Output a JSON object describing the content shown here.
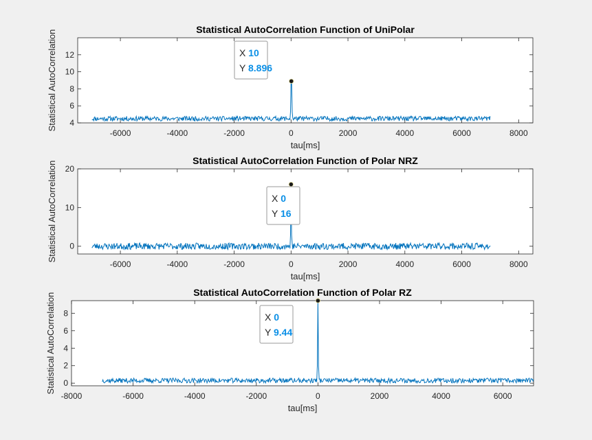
{
  "chart_data": [
    {
      "type": "line",
      "title": "Statistical AutoCorrelation Function of UniPolar",
      "xlabel": "tau[ms]",
      "ylabel": "Statistical AutoCorrelation",
      "xlim": [
        -7500,
        8500
      ],
      "ylim": [
        4,
        14
      ],
      "xticks": [
        -6000,
        -4000,
        -2000,
        0,
        2000,
        4000,
        6000,
        8000
      ],
      "yticks": [
        4,
        6,
        8,
        10,
        12
      ],
      "series_color": "#0072bd",
      "series": [
        {
          "x_range": [
            -7000,
            7000
          ],
          "baseline": 4.5,
          "noise": 0.28,
          "peak": {
            "x": 10,
            "y": 8.896
          },
          "seed": 11
        }
      ],
      "datatip": {
        "x_label": "X",
        "x_value": "10",
        "y_label": "Y",
        "y_value": "8.896",
        "x": 10,
        "y": 8.896
      }
    },
    {
      "type": "line",
      "title": "Statistical AutoCorrelation Function of Polar NRZ",
      "xlabel": "tau[ms]",
      "ylabel": "Statistical AutoCorrelation",
      "xlim": [
        -7500,
        8500
      ],
      "ylim": [
        -2,
        20
      ],
      "xticks": [
        -6000,
        -4000,
        -2000,
        0,
        2000,
        4000,
        6000,
        8000
      ],
      "yticks": [
        0,
        10,
        20
      ],
      "series_color": "#0072bd",
      "series": [
        {
          "x_range": [
            -7000,
            7000
          ],
          "baseline": 0,
          "noise": 0.85,
          "peak": {
            "x": 0,
            "y": 16
          },
          "seed": 23
        }
      ],
      "datatip": {
        "x_label": "X",
        "x_value": "0",
        "y_label": "Y",
        "y_value": "16",
        "x": 0,
        "y": 16
      }
    },
    {
      "type": "line",
      "title": "Statistical AutoCorrelation Function of Polar RZ",
      "xlabel": "tau[ms]",
      "ylabel": "Statistical AutoCorrelation",
      "xlim": [
        -8000,
        7000
      ],
      "ylim": [
        -0.3,
        9.44
      ],
      "xticks": [
        -8000,
        -6000,
        -4000,
        -2000,
        0,
        2000,
        4000,
        6000
      ],
      "yticks": [
        0,
        2,
        4,
        6,
        8
      ],
      "series_color": "#0072bd",
      "series": [
        {
          "x_range": [
            -7000,
            7000
          ],
          "baseline": 0.3,
          "noise": 0.28,
          "peak": {
            "x": 0,
            "y": 9.44
          },
          "seed": 37
        }
      ],
      "datatip": {
        "x_label": "X",
        "x_value": "0",
        "y_label": "Y",
        "y_value": "9.44",
        "x": 0,
        "y": 9.44
      }
    }
  ]
}
